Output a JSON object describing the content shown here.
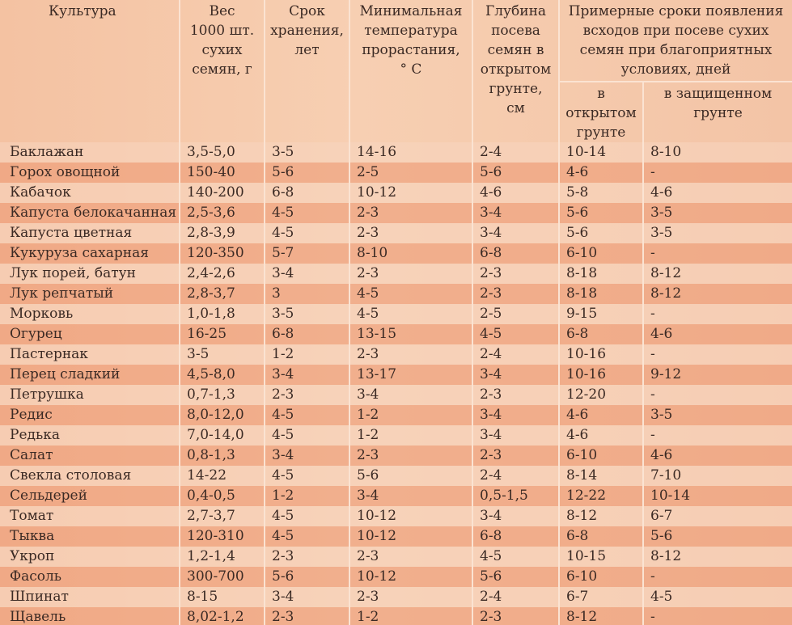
{
  "headers": {
    "culture": "Культура",
    "weight": "Вес\n1000 шт.\nсухих\nсемян, г",
    "storage": "Срок\nхранения,\nлет",
    "min_temp": "Минимальная\nтемпература\nпрорастания,\n° С",
    "depth": "Глубина\nпосева\nсемян в\nоткрытом\nгрунте,\nсм",
    "group": "Примерные сроки появления\nвсходов при посеве сухих\nсемян при благоприятных\nусловиях, дней",
    "open": "в\nоткрытом\nгрунте",
    "protected": "в защищенном\nгрунте"
  },
  "rows": [
    [
      "Баклажан",
      "3,5-5,0",
      "3-5",
      "14-16",
      "2-4",
      "10-14",
      "8-10"
    ],
    [
      "Горох овощной",
      "150-40",
      "5-6",
      "2-5",
      "5-6",
      "4-6",
      "-"
    ],
    [
      "Кабачок",
      "140-200",
      "6-8",
      "10-12",
      "4-6",
      "5-8",
      "4-6"
    ],
    [
      "Капуста белокачанная",
      "2,5-3,6",
      "4-5",
      "2-3",
      "3-4",
      "5-6",
      "3-5"
    ],
    [
      "Капуста цветная",
      "2,8-3,9",
      "4-5",
      "2-3",
      "3-4",
      "5-6",
      "3-5"
    ],
    [
      "Кукуруза сахарная",
      "120-350",
      "5-7",
      "8-10",
      "6-8",
      "6-10",
      "-"
    ],
    [
      "Лук порей, батун",
      "2,4-2,6",
      "3-4",
      "2-3",
      "2-3",
      "8-18",
      "8-12"
    ],
    [
      "Лук репчатый",
      "2,8-3,7",
      "3",
      "4-5",
      "2-3",
      "8-18",
      "8-12"
    ],
    [
      "Морковь",
      "1,0-1,8",
      "3-5",
      "4-5",
      "2-5",
      "9-15",
      "-"
    ],
    [
      "Огурец",
      "16-25",
      "6-8",
      "13-15",
      "4-5",
      "6-8",
      "4-6"
    ],
    [
      "Пастернак",
      "3-5",
      "1-2",
      "2-3",
      "2-4",
      "10-16",
      "-"
    ],
    [
      "Перец сладкий",
      "4,5-8,0",
      "3-4",
      "13-17",
      "3-4",
      "10-16",
      "9-12"
    ],
    [
      "Петрушка",
      "0,7-1,3",
      "2-3",
      "3-4",
      "2-3",
      "12-20",
      "-"
    ],
    [
      "Редис",
      "8,0-12,0",
      "4-5",
      "1-2",
      "3-4",
      "4-6",
      "3-5"
    ],
    [
      "Редька",
      "7,0-14,0",
      "4-5",
      "1-2",
      "3-4",
      "4-6",
      "-"
    ],
    [
      "Салат",
      "0,8-1,3",
      "3-4",
      "2-3",
      "2-3",
      "6-10",
      "4-6"
    ],
    [
      "Свекла столовая",
      "14-22",
      "4-5",
      "5-6",
      "2-4",
      "8-14",
      "7-10"
    ],
    [
      "Сельдерей",
      "0,4-0,5",
      "1-2",
      "3-4",
      "0,5-1,5",
      "12-22",
      "10-14"
    ],
    [
      "Томат",
      "2,7-3,7",
      "4-5",
      "10-12",
      "3-4",
      "8-12",
      "6-7"
    ],
    [
      "Тыква",
      "120-310",
      "4-5",
      "10-12",
      "6-8",
      "6-8",
      "5-6"
    ],
    [
      "Укроп",
      "1,2-1,4",
      "2-3",
      "2-3",
      "4-5",
      "10-15",
      "8-12"
    ],
    [
      "Фасоль",
      "300-700",
      "5-6",
      "10-12",
      "5-6",
      "6-10",
      "-"
    ],
    [
      "Шпинат",
      "8-15",
      "3-4",
      "2-3",
      "2-4",
      "6-7",
      "4-5"
    ],
    [
      "Щавель",
      "8,02-1,2",
      "2-3",
      "1-2",
      "2-3",
      "8-12",
      "-"
    ]
  ]
}
